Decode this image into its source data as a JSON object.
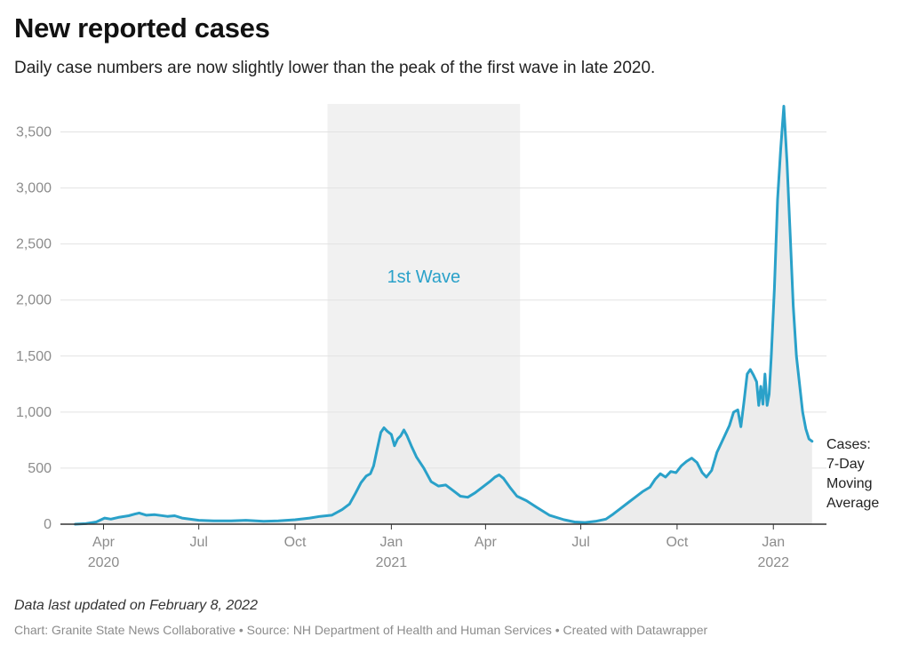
{
  "header": {
    "title": "New reported cases",
    "subtitle": "Daily case numbers are now slightly lower than the peak of the first wave in late 2020."
  },
  "footer": {
    "note": "Data last updated on February 8, 2022",
    "credit": "Chart: Granite State News Collaborative • Source: NH Department of Health and Human Services • Created with Datawrapper"
  },
  "colors": {
    "line": "#2aa1c9",
    "area": "#ececec",
    "band": "#f1f1f1",
    "grid": "#e2e2e2",
    "axis": "#333333"
  },
  "chart_data": {
    "type": "area",
    "title": "New reported cases",
    "ylabel": "",
    "xlabel": "",
    "ylim": [
      0,
      3750
    ],
    "yticks": [
      0,
      500,
      1000,
      1500,
      2000,
      2500,
      3000,
      3500
    ],
    "ytick_labels": [
      "0",
      "500",
      "1,000",
      "1,500",
      "2,000",
      "2,500",
      "3,000",
      "3,500"
    ],
    "xlim": [
      "2020-03-01",
      "2022-02-08"
    ],
    "xticks": [
      {
        "date": "2020-04-01",
        "label": "Apr",
        "year": "2020"
      },
      {
        "date": "2020-07-01",
        "label": "Jul",
        "year": ""
      },
      {
        "date": "2020-10-01",
        "label": "Oct",
        "year": ""
      },
      {
        "date": "2021-01-01",
        "label": "Jan",
        "year": "2021"
      },
      {
        "date": "2021-04-01",
        "label": "Apr",
        "year": ""
      },
      {
        "date": "2021-07-01",
        "label": "Jul",
        "year": ""
      },
      {
        "date": "2021-10-01",
        "label": "Oct",
        "year": ""
      },
      {
        "date": "2022-01-01",
        "label": "Jan",
        "year": "2022"
      }
    ],
    "highlight_range": {
      "start": "2020-11-01",
      "end": "2021-05-04",
      "label": "1st Wave"
    },
    "series": [
      {
        "name": "Cases: 7-Day Moving Average",
        "label_lines": [
          "Cases:",
          "7-Day",
          "Moving",
          "Average"
        ],
        "points": [
          [
            "2020-03-05",
            0
          ],
          [
            "2020-03-15",
            5
          ],
          [
            "2020-03-25",
            20
          ],
          [
            "2020-04-02",
            55
          ],
          [
            "2020-04-08",
            45
          ],
          [
            "2020-04-15",
            60
          ],
          [
            "2020-04-25",
            75
          ],
          [
            "2020-05-01",
            90
          ],
          [
            "2020-05-05",
            100
          ],
          [
            "2020-05-12",
            80
          ],
          [
            "2020-05-20",
            85
          ],
          [
            "2020-06-01",
            70
          ],
          [
            "2020-06-08",
            75
          ],
          [
            "2020-06-15",
            55
          ],
          [
            "2020-07-01",
            35
          ],
          [
            "2020-07-15",
            30
          ],
          [
            "2020-08-01",
            30
          ],
          [
            "2020-08-15",
            35
          ],
          [
            "2020-09-01",
            25
          ],
          [
            "2020-09-15",
            30
          ],
          [
            "2020-10-01",
            40
          ],
          [
            "2020-10-15",
            55
          ],
          [
            "2020-10-25",
            70
          ],
          [
            "2020-11-05",
            80
          ],
          [
            "2020-11-15",
            130
          ],
          [
            "2020-11-22",
            180
          ],
          [
            "2020-11-28",
            280
          ],
          [
            "2020-12-03",
            370
          ],
          [
            "2020-12-08",
            430
          ],
          [
            "2020-12-12",
            450
          ],
          [
            "2020-12-15",
            520
          ],
          [
            "2020-12-18",
            650
          ],
          [
            "2020-12-22",
            820
          ],
          [
            "2020-12-25",
            860
          ],
          [
            "2020-12-28",
            830
          ],
          [
            "2021-01-01",
            800
          ],
          [
            "2021-01-04",
            700
          ],
          [
            "2021-01-07",
            760
          ],
          [
            "2021-01-10",
            790
          ],
          [
            "2021-01-13",
            840
          ],
          [
            "2021-01-16",
            790
          ],
          [
            "2021-01-20",
            700
          ],
          [
            "2021-01-25",
            600
          ],
          [
            "2021-02-01",
            500
          ],
          [
            "2021-02-08",
            380
          ],
          [
            "2021-02-15",
            340
          ],
          [
            "2021-02-22",
            350
          ],
          [
            "2021-03-01",
            300
          ],
          [
            "2021-03-08",
            250
          ],
          [
            "2021-03-15",
            240
          ],
          [
            "2021-03-22",
            280
          ],
          [
            "2021-03-29",
            330
          ],
          [
            "2021-04-05",
            380
          ],
          [
            "2021-04-10",
            420
          ],
          [
            "2021-04-14",
            440
          ],
          [
            "2021-04-18",
            410
          ],
          [
            "2021-04-25",
            320
          ],
          [
            "2021-05-01",
            250
          ],
          [
            "2021-05-10",
            210
          ],
          [
            "2021-05-20",
            150
          ],
          [
            "2021-06-01",
            80
          ],
          [
            "2021-06-15",
            40
          ],
          [
            "2021-06-25",
            20
          ],
          [
            "2021-07-05",
            15
          ],
          [
            "2021-07-15",
            25
          ],
          [
            "2021-07-25",
            45
          ],
          [
            "2021-08-01",
            90
          ],
          [
            "2021-08-08",
            140
          ],
          [
            "2021-08-15",
            190
          ],
          [
            "2021-08-22",
            240
          ],
          [
            "2021-08-29",
            290
          ],
          [
            "2021-09-05",
            330
          ],
          [
            "2021-09-10",
            400
          ],
          [
            "2021-09-15",
            450
          ],
          [
            "2021-09-20",
            420
          ],
          [
            "2021-09-25",
            470
          ],
          [
            "2021-09-30",
            460
          ],
          [
            "2021-10-05",
            520
          ],
          [
            "2021-10-10",
            560
          ],
          [
            "2021-10-15",
            590
          ],
          [
            "2021-10-20",
            550
          ],
          [
            "2021-10-25",
            460
          ],
          [
            "2021-10-29",
            420
          ],
          [
            "2021-11-03",
            480
          ],
          [
            "2021-11-08",
            640
          ],
          [
            "2021-11-12",
            720
          ],
          [
            "2021-11-16",
            800
          ],
          [
            "2021-11-20",
            880
          ],
          [
            "2021-11-24",
            1000
          ],
          [
            "2021-11-28",
            1020
          ],
          [
            "2021-12-01",
            870
          ],
          [
            "2021-12-04",
            1100
          ],
          [
            "2021-12-07",
            1340
          ],
          [
            "2021-12-10",
            1380
          ],
          [
            "2021-12-13",
            1330
          ],
          [
            "2021-12-16",
            1270
          ],
          [
            "2021-12-18",
            1060
          ],
          [
            "2021-12-20",
            1230
          ],
          [
            "2021-12-22",
            1070
          ],
          [
            "2021-12-24",
            1340
          ],
          [
            "2021-12-26",
            1060
          ],
          [
            "2021-12-28",
            1160
          ],
          [
            "2021-12-30",
            1500
          ],
          [
            "2022-01-02",
            2100
          ],
          [
            "2022-01-05",
            2900
          ],
          [
            "2022-01-08",
            3350
          ],
          [
            "2022-01-11",
            3730
          ],
          [
            "2022-01-14",
            3230
          ],
          [
            "2022-01-17",
            2600
          ],
          [
            "2022-01-20",
            1950
          ],
          [
            "2022-01-23",
            1500
          ],
          [
            "2022-01-26",
            1250
          ],
          [
            "2022-01-29",
            1000
          ],
          [
            "2022-02-01",
            850
          ],
          [
            "2022-02-04",
            760
          ],
          [
            "2022-02-07",
            740
          ]
        ]
      }
    ]
  }
}
